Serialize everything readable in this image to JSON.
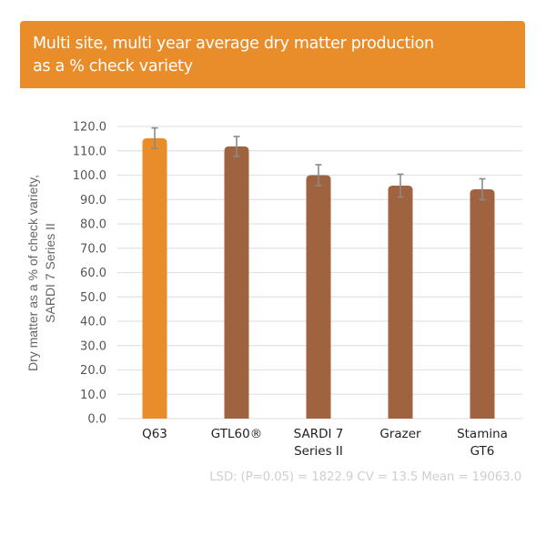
{
  "header": {
    "title_line1": "Multi site, multi year average dry matter production",
    "title_line2": "as a % check variety"
  },
  "colors": {
    "header_bg": "#E98D2B",
    "highlight_bar": "#E98D2B",
    "bar": "#A0633F",
    "error_bar": "#8a8a8a",
    "grid": "#e3e3e3"
  },
  "chart_data": {
    "type": "bar",
    "title": "Multi site, multi year average dry matter production as a % check variety",
    "xlabel": "",
    "ylabel_lines": [
      "Dry matter as a % of check variety,",
      "SARDI 7 Series II"
    ],
    "ylim": [
      0,
      120
    ],
    "y_ticks": [
      "0.0",
      "10.0",
      "20.0",
      "30.0",
      "40.0",
      "50.0",
      "60.0",
      "70.0",
      "80.0",
      "90.0",
      "100.0",
      "110.0",
      "120.0"
    ],
    "grid": true,
    "legend": "none",
    "categories": [
      {
        "lines": [
          "Q63"
        ]
      },
      {
        "lines": [
          "GTL60®"
        ]
      },
      {
        "lines": [
          "SARDI 7",
          "Series II"
        ]
      },
      {
        "lines": [
          "Grazer"
        ]
      },
      {
        "lines": [
          "Stamina",
          "GT6"
        ]
      }
    ],
    "values": [
      115.2,
      111.8,
      100.0,
      95.7,
      94.2
    ],
    "error": [
      4.2,
      4.1,
      4.3,
      4.7,
      4.3
    ],
    "highlight_index": 0,
    "footnote": "LSD: (P=0.05) = 1822.9 CV = 13.5 Mean = 19063.0"
  }
}
